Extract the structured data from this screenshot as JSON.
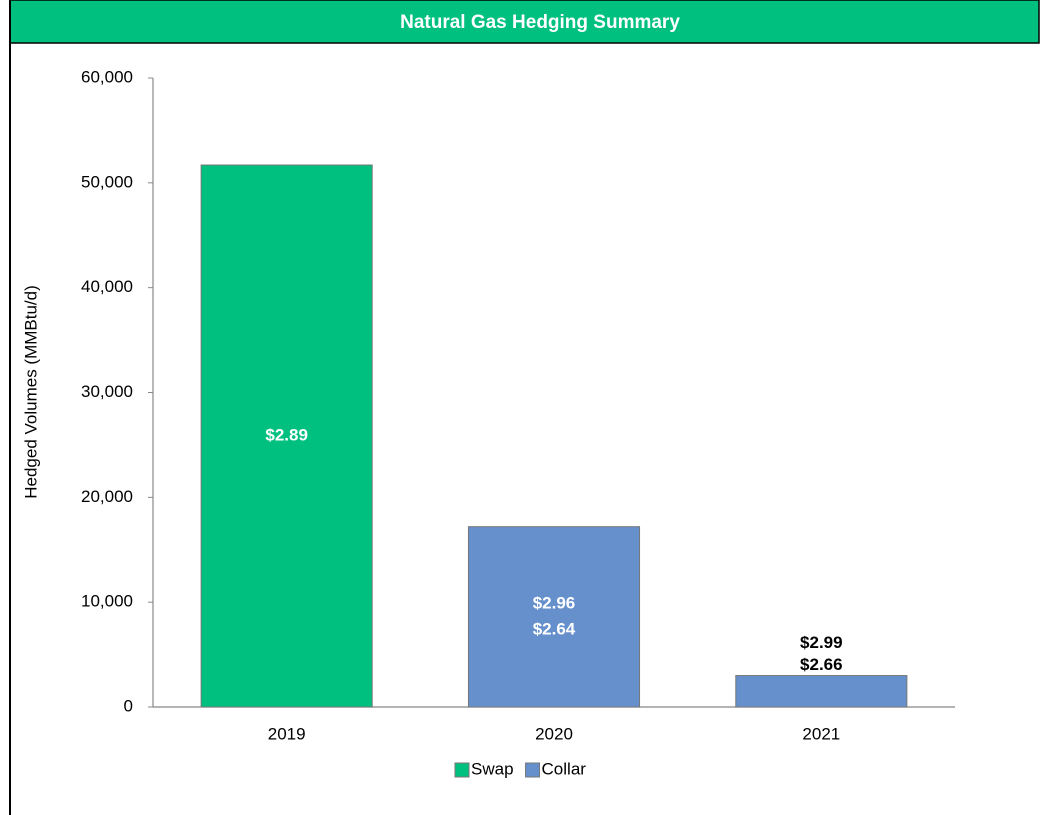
{
  "chart_data": {
    "type": "bar",
    "stacked": true,
    "title": "Natural Gas Hedging Summary",
    "y_label": "Hedged Volumes (MMBtu/d)",
    "categories": [
      "2019",
      "2020",
      "2021"
    ],
    "series": [
      {
        "name": "Swap",
        "color": "#00c07f",
        "values": [
          51700,
          null,
          null
        ],
        "labels": [
          [
            "$2.89"
          ],
          null,
          null
        ]
      },
      {
        "name": "Collar",
        "color": "#6690cc",
        "values": [
          null,
          17200,
          3000
        ],
        "labels": [
          null,
          [
            "$2.96",
            "$2.64"
          ],
          [
            "$2.99",
            "$2.66"
          ]
        ]
      }
    ],
    "ylim": [
      0,
      60000
    ],
    "yticks": [
      0,
      {
        "value": 10000,
        "label": "10,000"
      },
      {
        "value": 20000,
        "label": "20,000"
      },
      {
        "value": 30000,
        "label": "30,000"
      },
      {
        "value": 40000,
        "label": "40,000"
      },
      {
        "value": 50000,
        "label": "50,000"
      },
      {
        "value": 60000,
        "label": "60,000"
      }
    ],
    "grid": false,
    "legend": "bottom"
  }
}
